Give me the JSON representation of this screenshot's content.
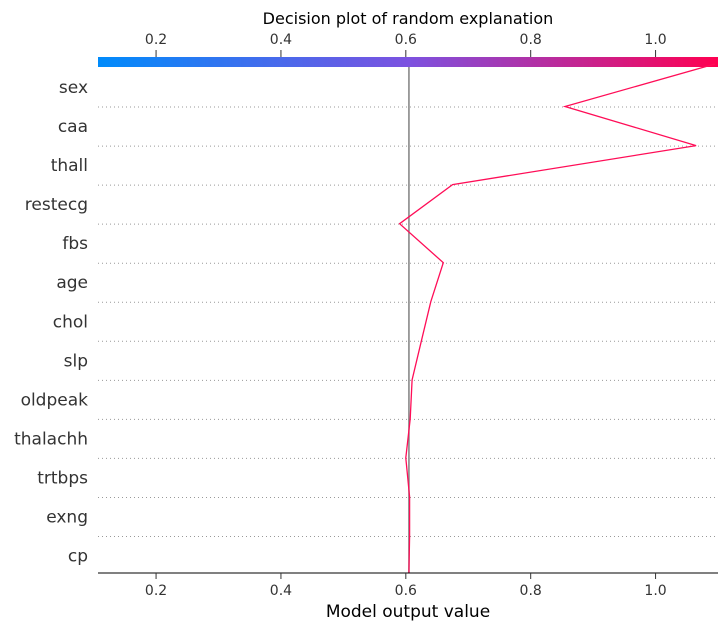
{
  "chart_data": {
    "type": "line",
    "title": "Decision plot of random explanation",
    "xlabel": "Model output value",
    "xlim": [
      0.107,
      1.1
    ],
    "x_ticks": [
      0.2,
      0.4,
      0.6,
      0.8,
      1.0
    ],
    "x_tick_labels": [
      "0.2",
      "0.4",
      "0.6",
      "0.8",
      "1.0"
    ],
    "base_value": 0.605,
    "features": [
      "sex",
      "caa",
      "thall",
      "restecg",
      "fbs",
      "age",
      "chol",
      "slp",
      "oldpeak",
      "thalachh",
      "trtbps",
      "exng",
      "cp"
    ],
    "series": [
      {
        "values": [
          1.095,
          0.855,
          1.065,
          0.675,
          0.59,
          0.66,
          0.64,
          0.625,
          0.61,
          0.607,
          0.6,
          0.606,
          0.606,
          0.605
        ]
      }
    ],
    "colors": {
      "line": "#ff0d57",
      "base_line": "#808080",
      "colorbar_low": "#008bfb",
      "colorbar_mid": "#7c52e0",
      "colorbar_high": "#ff0051",
      "text": "#333333"
    },
    "grid": "dotted horizontal separators",
    "colorbar_position": "top"
  }
}
